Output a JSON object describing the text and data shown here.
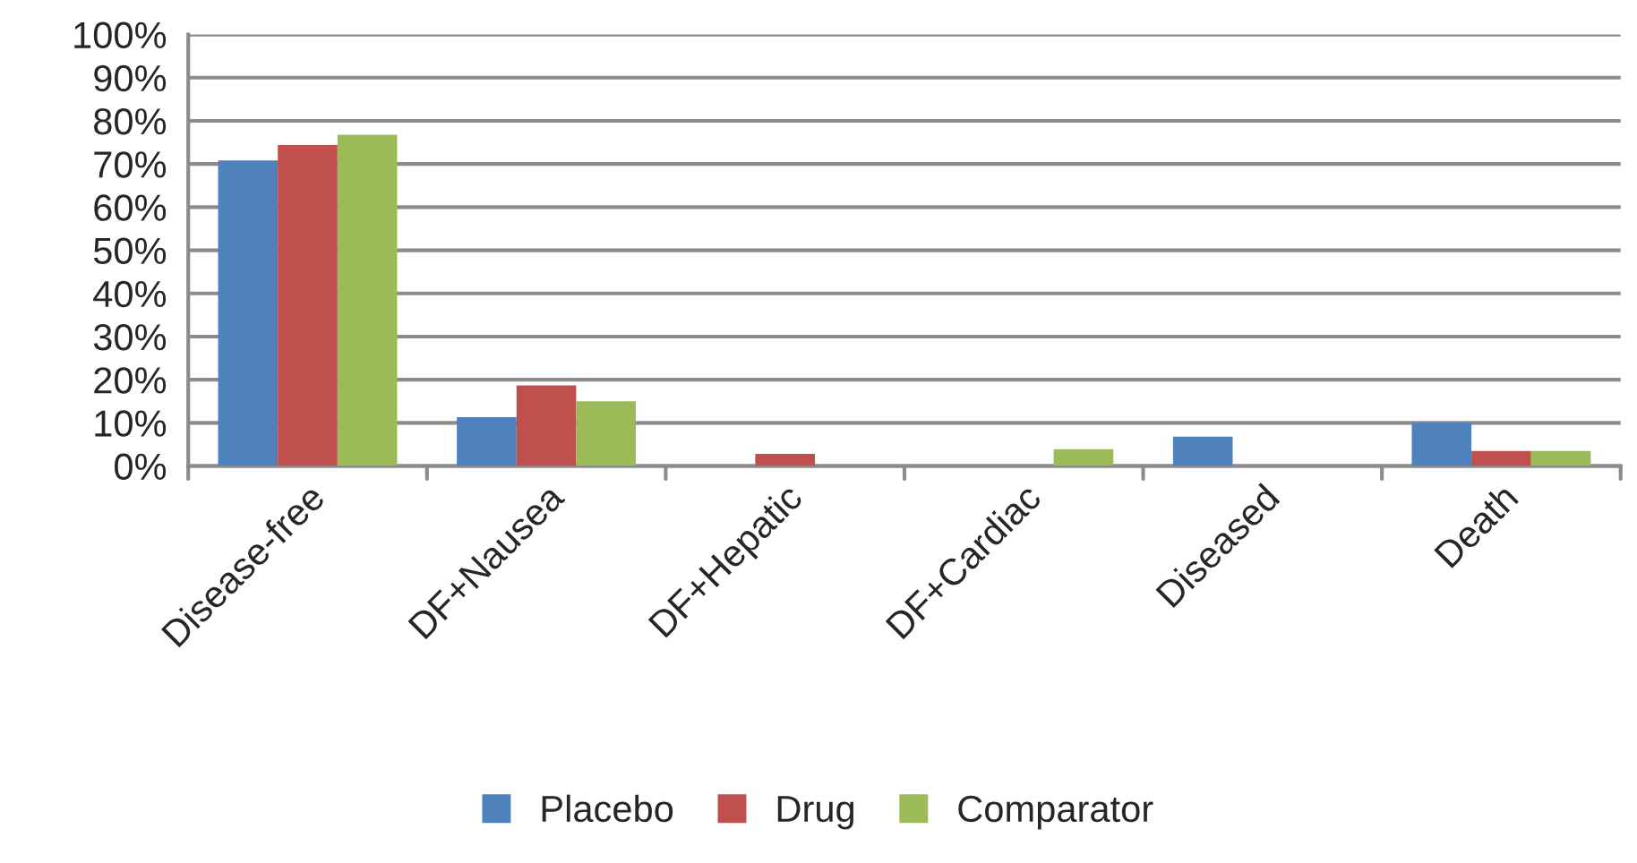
{
  "chart_data": {
    "type": "bar",
    "categories": [
      "Disease-free",
      "DF+Nausea",
      "DF+Hepatic",
      "DF+Cardiac",
      "Diseased",
      "Death"
    ],
    "series": [
      {
        "name": "Placebo",
        "color": "#4f81bd",
        "values": [
          70.8,
          11.3,
          0,
          0,
          6.8,
          10.0
        ]
      },
      {
        "name": "Drug",
        "color": "#c0504d",
        "values": [
          74.4,
          18.7,
          2.8,
          0,
          0,
          3.5
        ]
      },
      {
        "name": "Comparator",
        "color": "#9bbb59",
        "values": [
          76.8,
          15.0,
          0,
          3.9,
          0,
          3.5
        ]
      }
    ],
    "ylim": [
      0,
      100
    ],
    "yticks": [
      {
        "value": 0,
        "label": "0%"
      },
      {
        "value": 10,
        "label": "10%"
      },
      {
        "value": 20,
        "label": "20%"
      },
      {
        "value": 30,
        "label": "30%"
      },
      {
        "value": 40,
        "label": "40%"
      },
      {
        "value": 50,
        "label": "50%"
      },
      {
        "value": 60,
        "label": "60%"
      },
      {
        "value": 70,
        "label": "70%"
      },
      {
        "value": 80,
        "label": "80%"
      },
      {
        "value": 90,
        "label": "90%"
      },
      {
        "value": 100,
        "label": "100%"
      }
    ],
    "grid": "y",
    "legend": "bottom"
  }
}
